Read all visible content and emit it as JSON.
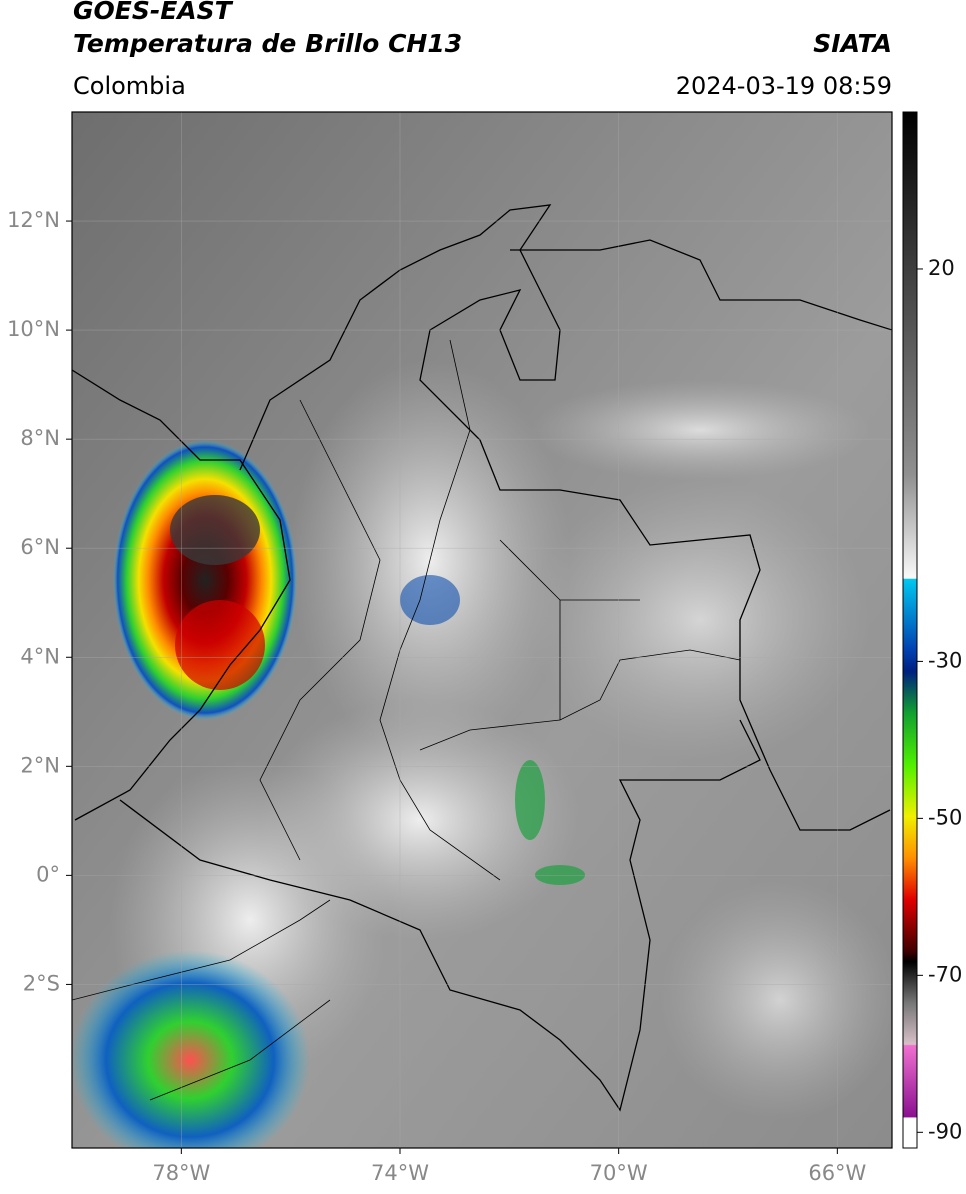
{
  "header": {
    "title_lines": [
      "GOES-EAST",
      "Temperatura de Brillo CH13"
    ],
    "source": "SIATA",
    "region": "Colombia",
    "datetime": "2024-03-19 08:59"
  },
  "map": {
    "xlim": [
      -80,
      -65
    ],
    "ylim": [
      -5,
      14
    ],
    "lon_ticks": [
      {
        "value": -78,
        "label": "78°W"
      },
      {
        "value": -74,
        "label": "74°W"
      },
      {
        "value": -70,
        "label": "70°W"
      },
      {
        "value": -66,
        "label": "66°W"
      }
    ],
    "lat_ticks": [
      {
        "value": 12,
        "label": "12°N"
      },
      {
        "value": 10,
        "label": "10°N"
      },
      {
        "value": 8,
        "label": "8°N"
      },
      {
        "value": 6,
        "label": "6°N"
      },
      {
        "value": 4,
        "label": "4°N"
      },
      {
        "value": 2,
        "label": "2°N"
      },
      {
        "value": 0,
        "label": "0°"
      },
      {
        "value": -2,
        "label": "2°S"
      }
    ]
  },
  "colorbar": {
    "lim": [
      -92,
      40
    ],
    "ticks": [
      20,
      -30,
      -50,
      -70,
      -90
    ]
  }
}
